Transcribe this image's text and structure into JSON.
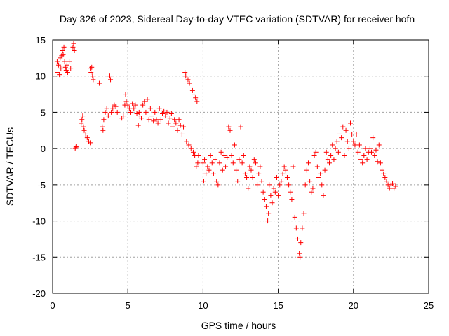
{
  "chart_data": {
    "type": "scatter",
    "title": "Day 326 of 2023, Sidereal Day-to-day VTEC variation (SDTVAR) for receiver hofn",
    "xlabel": "GPS time / hours",
    "ylabel": "SDTVAR / TECUs",
    "xlim": [
      0,
      25
    ],
    "ylim": [
      -20,
      15
    ],
    "x_ticks": [
      0,
      5,
      10,
      15,
      20,
      25
    ],
    "y_ticks": [
      -20,
      -15,
      -10,
      -5,
      0,
      5,
      10,
      15
    ],
    "grid": true,
    "marker": "+",
    "color": "#ff0000",
    "series": [
      {
        "name": "SDTVAR",
        "points": [
          [
            0.3,
            12.0
          ],
          [
            0.35,
            10.5
          ],
          [
            0.4,
            11.5
          ],
          [
            0.45,
            10.2
          ],
          [
            0.5,
            12.5
          ],
          [
            0.55,
            11.0
          ],
          [
            0.6,
            12.8
          ],
          [
            0.65,
            13.5
          ],
          [
            0.7,
            13.0
          ],
          [
            0.75,
            14.0
          ],
          [
            0.8,
            12.0
          ],
          [
            0.85,
            11.2
          ],
          [
            0.9,
            10.8
          ],
          [
            0.95,
            11.5
          ],
          [
            1.0,
            10.5
          ],
          [
            1.1,
            12.0
          ],
          [
            1.2,
            11.0
          ],
          [
            1.35,
            14.0
          ],
          [
            1.4,
            14.5
          ],
          [
            1.45,
            13.5
          ],
          [
            1.5,
            0.0
          ],
          [
            1.55,
            0.2
          ],
          [
            1.6,
            0.3
          ],
          [
            1.9,
            3.5
          ],
          [
            1.95,
            4.0
          ],
          [
            2.0,
            4.5
          ],
          [
            2.05,
            3.0
          ],
          [
            2.1,
            2.5
          ],
          [
            2.2,
            2.0
          ],
          [
            2.3,
            1.5
          ],
          [
            2.4,
            1.0
          ],
          [
            2.5,
            0.8
          ],
          [
            2.5,
            11.0
          ],
          [
            2.55,
            10.5
          ],
          [
            2.6,
            11.2
          ],
          [
            2.65,
            10.0
          ],
          [
            2.7,
            9.5
          ],
          [
            3.1,
            9.0
          ],
          [
            3.3,
            3.0
          ],
          [
            3.35,
            2.5
          ],
          [
            3.4,
            4.0
          ],
          [
            3.5,
            5.0
          ],
          [
            3.6,
            5.5
          ],
          [
            3.7,
            4.5
          ],
          [
            3.8,
            10.0
          ],
          [
            3.85,
            9.5
          ],
          [
            3.9,
            5.0
          ],
          [
            4.0,
            5.5
          ],
          [
            4.1,
            6.0
          ],
          [
            4.2,
            5.8
          ],
          [
            4.3,
            5.0
          ],
          [
            4.6,
            4.2
          ],
          [
            4.7,
            4.5
          ],
          [
            4.8,
            6.0
          ],
          [
            4.85,
            7.5
          ],
          [
            4.9,
            6.5
          ],
          [
            5.0,
            6.0
          ],
          [
            5.1,
            5.5
          ],
          [
            5.2,
            5.0
          ],
          [
            5.3,
            6.2
          ],
          [
            5.4,
            5.5
          ],
          [
            5.5,
            6.0
          ],
          [
            5.6,
            4.8
          ],
          [
            5.7,
            3.2
          ],
          [
            5.75,
            5.0
          ],
          [
            5.8,
            4.5
          ],
          [
            5.9,
            4.2
          ],
          [
            6.0,
            6.0
          ],
          [
            6.1,
            6.5
          ],
          [
            6.2,
            5.0
          ],
          [
            6.3,
            6.8
          ],
          [
            6.4,
            4.0
          ],
          [
            6.5,
            5.5
          ],
          [
            6.6,
            4.5
          ],
          [
            6.7,
            3.8
          ],
          [
            6.8,
            5.0
          ],
          [
            6.9,
            4.0
          ],
          [
            7.0,
            3.5
          ],
          [
            7.1,
            5.5
          ],
          [
            7.2,
            4.0
          ],
          [
            7.3,
            4.8
          ],
          [
            7.4,
            5.2
          ],
          [
            7.5,
            4.5
          ],
          [
            7.6,
            5.0
          ],
          [
            7.7,
            3.5
          ],
          [
            7.8,
            4.2
          ],
          [
            7.9,
            4.8
          ],
          [
            8.0,
            3.0
          ],
          [
            8.1,
            4.0
          ],
          [
            8.2,
            3.5
          ],
          [
            8.3,
            2.5
          ],
          [
            8.4,
            4.0
          ],
          [
            8.5,
            3.2
          ],
          [
            8.6,
            2.0
          ],
          [
            8.7,
            3.0
          ],
          [
            8.8,
            10.5
          ],
          [
            8.85,
            10.0
          ],
          [
            8.9,
            1.0
          ],
          [
            9.0,
            9.5
          ],
          [
            9.05,
            0.5
          ],
          [
            9.1,
            9.0
          ],
          [
            9.2,
            0.0
          ],
          [
            9.3,
            8.0
          ],
          [
            9.35,
            -0.5
          ],
          [
            9.4,
            7.5
          ],
          [
            9.45,
            -1.0
          ],
          [
            9.5,
            7.0
          ],
          [
            9.55,
            -2.5
          ],
          [
            9.6,
            6.5
          ],
          [
            9.65,
            -2.0
          ],
          [
            9.7,
            -1.0
          ],
          [
            10.0,
            -2.0
          ],
          [
            10.05,
            -4.5
          ],
          [
            10.1,
            -1.5
          ],
          [
            10.2,
            -3.5
          ],
          [
            10.3,
            -2.5
          ],
          [
            10.4,
            -3.0
          ],
          [
            10.5,
            -1.0
          ],
          [
            10.6,
            -2.0
          ],
          [
            10.7,
            -3.5
          ],
          [
            10.8,
            -1.5
          ],
          [
            10.9,
            -4.5
          ],
          [
            11.0,
            -5.0
          ],
          [
            11.1,
            -2.0
          ],
          [
            11.2,
            -0.5
          ],
          [
            11.3,
            -3.0
          ],
          [
            11.4,
            -1.0
          ],
          [
            11.5,
            -2.5
          ],
          [
            11.6,
            -1.2
          ],
          [
            11.7,
            3.0
          ],
          [
            11.8,
            2.5
          ],
          [
            11.9,
            -1.0
          ],
          [
            12.0,
            -2.0
          ],
          [
            12.1,
            0.5
          ],
          [
            12.2,
            -3.0
          ],
          [
            12.3,
            -4.5
          ],
          [
            12.4,
            -1.5
          ],
          [
            12.5,
            3.0
          ],
          [
            12.6,
            -2.0
          ],
          [
            12.7,
            -1.0
          ],
          [
            12.8,
            -3.5
          ],
          [
            12.9,
            -4.0
          ],
          [
            13.0,
            -5.5
          ],
          [
            13.1,
            -2.5
          ],
          [
            13.2,
            -3.0
          ],
          [
            13.3,
            -4.0
          ],
          [
            13.4,
            -1.5
          ],
          [
            13.5,
            -2.0
          ],
          [
            13.6,
            -5.0
          ],
          [
            13.7,
            -3.5
          ],
          [
            13.8,
            -2.5
          ],
          [
            13.9,
            -4.5
          ],
          [
            14.0,
            -6.0
          ],
          [
            14.1,
            -7.0
          ],
          [
            14.2,
            -8.0
          ],
          [
            14.3,
            -10.0
          ],
          [
            14.35,
            -9.0
          ],
          [
            14.4,
            -5.0
          ],
          [
            14.5,
            -6.5
          ],
          [
            14.6,
            -7.5
          ],
          [
            14.7,
            -5.5
          ],
          [
            14.8,
            -6.0
          ],
          [
            14.9,
            -4.0
          ],
          [
            15.0,
            -6.5
          ],
          [
            15.1,
            -5.0
          ],
          [
            15.2,
            -4.5
          ],
          [
            15.3,
            -3.5
          ],
          [
            15.4,
            -2.5
          ],
          [
            15.5,
            -3.0
          ],
          [
            15.6,
            -4.0
          ],
          [
            15.7,
            -5.0
          ],
          [
            15.8,
            -6.0
          ],
          [
            15.9,
            -7.0
          ],
          [
            16.0,
            -2.5
          ],
          [
            16.1,
            -9.5
          ],
          [
            16.2,
            -11.0
          ],
          [
            16.3,
            -12.5
          ],
          [
            16.4,
            -14.5
          ],
          [
            16.45,
            -15.0
          ],
          [
            16.5,
            -13.0
          ],
          [
            16.6,
            -11.0
          ],
          [
            16.7,
            -9.0
          ],
          [
            16.8,
            -5.0
          ],
          [
            16.9,
            -3.0
          ],
          [
            17.0,
            -2.0
          ],
          [
            17.1,
            -4.5
          ],
          [
            17.2,
            -6.0
          ],
          [
            17.3,
            -5.5
          ],
          [
            17.4,
            -1.0
          ],
          [
            17.5,
            -0.5
          ],
          [
            17.6,
            -2.5
          ],
          [
            17.7,
            -4.0
          ],
          [
            17.8,
            -3.5
          ],
          [
            17.9,
            -5.0
          ],
          [
            18.0,
            -6.5
          ],
          [
            18.1,
            -3.0
          ],
          [
            18.2,
            -0.5
          ],
          [
            18.3,
            -1.5
          ],
          [
            18.4,
            -2.0
          ],
          [
            18.5,
            -1.0
          ],
          [
            18.6,
            0.5
          ],
          [
            18.7,
            -1.5
          ],
          [
            18.8,
            0.0
          ],
          [
            18.9,
            1.0
          ],
          [
            19.0,
            -0.5
          ],
          [
            19.1,
            2.0
          ],
          [
            19.2,
            1.5
          ],
          [
            19.3,
            3.0
          ],
          [
            19.4,
            -1.0
          ],
          [
            19.5,
            2.5
          ],
          [
            19.6,
            1.0
          ],
          [
            19.7,
            0.0
          ],
          [
            19.8,
            3.5
          ],
          [
            19.9,
            2.0
          ],
          [
            20.0,
            1.0
          ],
          [
            20.1,
            0.5
          ],
          [
            20.2,
            2.0
          ],
          [
            20.3,
            -0.5
          ],
          [
            20.4,
            0.5
          ],
          [
            20.5,
            -1.5
          ],
          [
            20.6,
            -2.0
          ],
          [
            20.7,
            -1.0
          ],
          [
            20.8,
            0.0
          ],
          [
            20.9,
            -1.5
          ],
          [
            21.0,
            -0.5
          ],
          [
            21.1,
            0.0
          ],
          [
            21.2,
            -0.5
          ],
          [
            21.3,
            1.5
          ],
          [
            21.4,
            -1.0
          ],
          [
            21.5,
            -0.2
          ],
          [
            21.6,
            -1.8
          ],
          [
            21.7,
            0.5
          ],
          [
            21.8,
            -2.0
          ],
          [
            21.9,
            -3.0
          ],
          [
            22.0,
            -3.5
          ],
          [
            22.1,
            -4.0
          ],
          [
            22.2,
            -4.5
          ],
          [
            22.3,
            -5.0
          ],
          [
            22.4,
            -5.5
          ],
          [
            22.5,
            -5.0
          ],
          [
            22.6,
            -4.8
          ],
          [
            22.7,
            -5.5
          ],
          [
            22.8,
            -5.2
          ]
        ]
      }
    ]
  }
}
